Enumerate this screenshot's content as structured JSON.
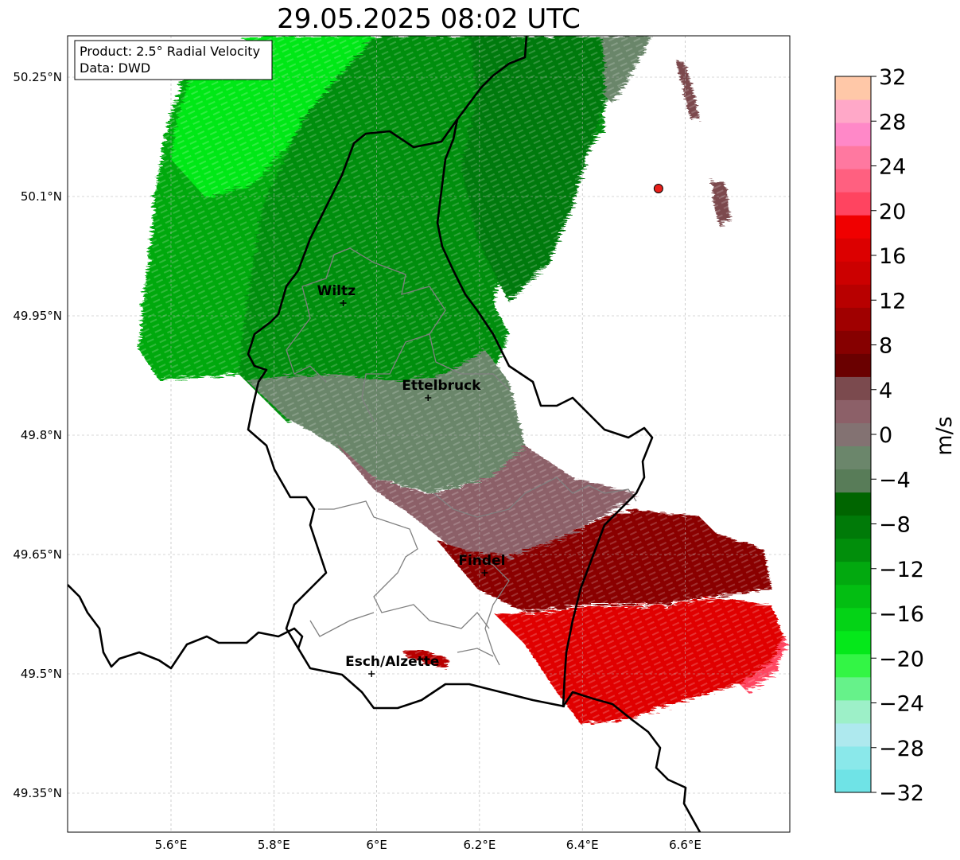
{
  "title": "29.05.2025 08:02 UTC",
  "info_box": {
    "product": "Product: 2.5° Radial Velocity",
    "source": "Data: DWD"
  },
  "axes": {
    "lon_range": [
      5.4,
      6.8
    ],
    "lat_range": [
      49.3,
      50.3
    ],
    "x_ticks": [
      {
        "value": 5.6,
        "label": "5.6°E"
      },
      {
        "value": 5.8,
        "label": "5.8°E"
      },
      {
        "value": 6.0,
        "label": "6°E"
      },
      {
        "value": 6.2,
        "label": "6.2°E"
      },
      {
        "value": 6.4,
        "label": "6.4°E"
      },
      {
        "value": 6.6,
        "label": "6.6°E"
      }
    ],
    "y_ticks": [
      {
        "value": 50.25,
        "label": "50.25°N"
      },
      {
        "value": 50.1,
        "label": "50.1°N"
      },
      {
        "value": 49.95,
        "label": "49.95°N"
      },
      {
        "value": 49.8,
        "label": "49.8°N"
      },
      {
        "value": 49.65,
        "label": "49.65°N"
      },
      {
        "value": 49.5,
        "label": "49.5°N"
      },
      {
        "value": 49.35,
        "label": "49.35°N"
      }
    ],
    "grid": "dashed"
  },
  "cities": [
    {
      "name": "Wiltz",
      "lon": 5.935,
      "lat": 49.966
    },
    {
      "name": "Ettelbruck",
      "lon": 6.1,
      "lat": 49.847
    },
    {
      "name": "Findel",
      "lon": 6.21,
      "lat": 49.627
    },
    {
      "name": "Esch/Alzette",
      "lon": 5.99,
      "lat": 49.5
    }
  ],
  "radar_site": {
    "lon": 6.548,
    "lat": 50.11,
    "color": "#e8201a"
  },
  "colorbar": {
    "label": "m/s",
    "min": -32,
    "max": 32,
    "tick_labels": [
      "32",
      "28",
      "24",
      "20",
      "16",
      "12",
      "8",
      "4",
      "0",
      "−4",
      "−8",
      "−12",
      "−16",
      "−20",
      "−24",
      "−28",
      "−32"
    ],
    "colors_bottom_to_top": [
      "#6fe3e6",
      "#8ae8ea",
      "#aee9ee",
      "#9df0c8",
      "#66f28a",
      "#33f545",
      "#05e81a",
      "#04d316",
      "#03be12",
      "#02a90f",
      "#018e0b",
      "#007a08",
      "#006500",
      "#587c58",
      "#6b866b",
      "#837272",
      "#8c6068",
      "#7b4a4e",
      "#6a0000",
      "#860000",
      "#a00000",
      "#b80000",
      "#cc0000",
      "#dc0000",
      "#f00000",
      "#ff4460",
      "#ff6080",
      "#ff78a0",
      "#ff88c8",
      "#ffa8c8",
      "#ffc8a8"
    ]
  },
  "regions": [
    {
      "name": "northwest-outbound",
      "color": "#02a90f"
    },
    {
      "name": "north-strong-outbound",
      "color": "#00e814"
    },
    {
      "name": "center-outbound",
      "color": "#018e0b"
    },
    {
      "name": "northeast-outbound",
      "color": "#007a08"
    },
    {
      "name": "near-zero-band",
      "color": "#6b866b"
    },
    {
      "name": "transition-band",
      "color": "#8c6068"
    },
    {
      "name": "southeast-inbound",
      "color": "#8a0000"
    },
    {
      "name": "south-strong-inbound",
      "color": "#e00000"
    }
  ]
}
